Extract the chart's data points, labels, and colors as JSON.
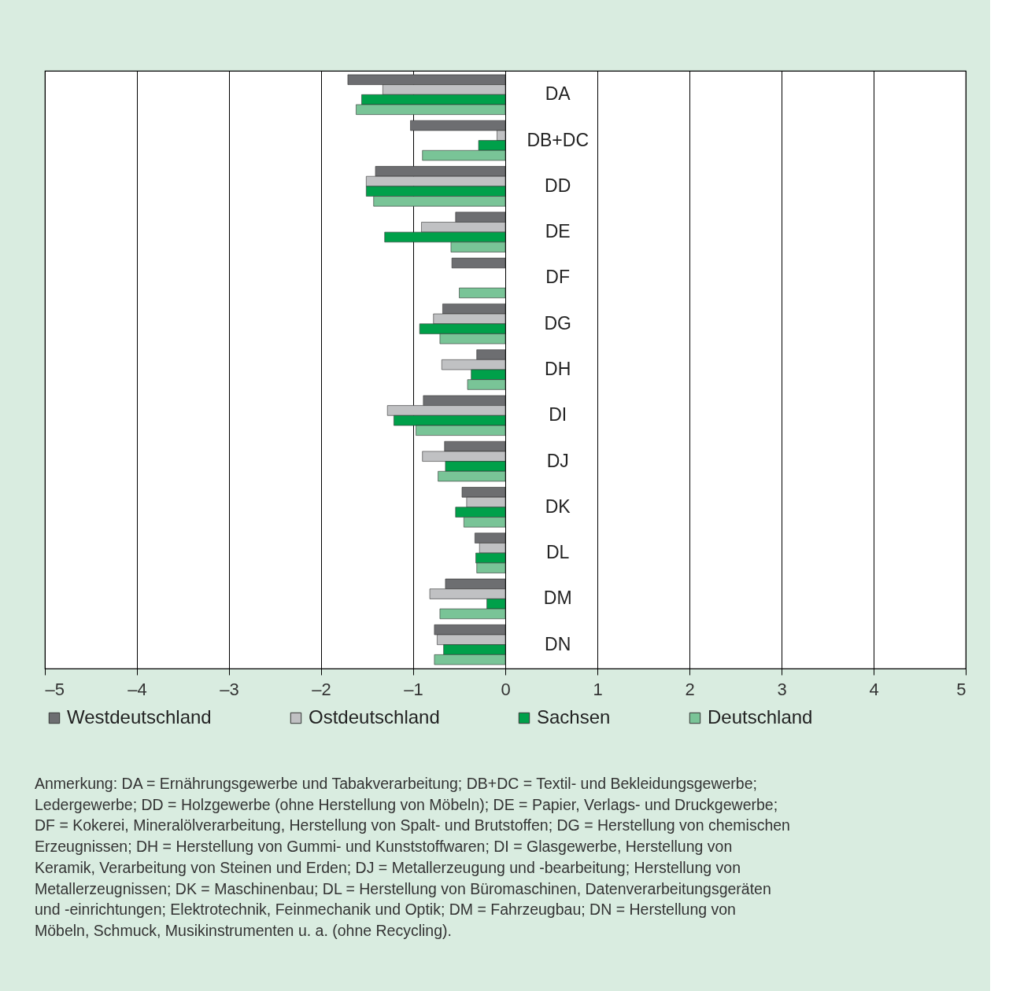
{
  "chart_data": {
    "type": "bar",
    "orientation": "horizontal",
    "categories": [
      "DA",
      "DB+DC",
      "DD",
      "DE",
      "DF",
      "DG",
      "DH",
      "DI",
      "DJ",
      "DK",
      "DL",
      "DM",
      "DN"
    ],
    "series": [
      {
        "name": "Westdeutschland",
        "color": "#6d6e71",
        "values": [
          -1.71,
          -1.03,
          -1.41,
          -0.54,
          -0.58,
          -0.68,
          -0.31,
          -0.89,
          -0.66,
          -0.47,
          -0.33,
          -0.65,
          -0.77
        ]
      },
      {
        "name": "Ostdeutschland",
        "color": "#c0c1c3",
        "values": [
          -1.33,
          -0.09,
          -1.51,
          -0.91,
          null,
          -0.78,
          -0.69,
          -1.28,
          -0.9,
          -0.42,
          -0.28,
          -0.82,
          -0.74
        ]
      },
      {
        "name": "Sachsen",
        "color": "#00a04a",
        "values": [
          -1.56,
          -0.29,
          -1.51,
          -1.31,
          null,
          -0.93,
          -0.37,
          -1.21,
          -0.65,
          -0.54,
          -0.32,
          -0.2,
          -0.67
        ]
      },
      {
        "name": "Deutschland",
        "color": "#79c497",
        "values": [
          -1.62,
          -0.9,
          -1.43,
          -0.59,
          -0.5,
          -0.71,
          -0.41,
          -0.97,
          -0.73,
          -0.45,
          -0.31,
          -0.71,
          -0.77
        ]
      }
    ],
    "xlim": [
      -5,
      5
    ],
    "xticks": [
      {
        "value": -5,
        "label": "–5"
      },
      {
        "value": -4,
        "label": "–4"
      },
      {
        "value": -3,
        "label": "–3"
      },
      {
        "value": -2,
        "label": "–2"
      },
      {
        "value": -1,
        "label": "–1"
      },
      0,
      1,
      2,
      3,
      4,
      5
    ],
    "grid": "x",
    "legend": "bottom",
    "annotations": [
      "Anmerkung: DA = Ernährungsgewerbe und Tabakverarbeitung; DB+DC = Textil- und Bekleidungsgewerbe;\nLedergewerbe; DD = Holzgewerbe (ohne Herstellung von Möbeln); DE = Papier, Verlags- und Druckgewerbe;\nDF = Kokerei, Mineralölverarbeitung, Herstellung von Spalt- und Brutstoffen; DG = Herstellung von chemischen\nErzeugnissen; DH = Herstellung von Gummi- und Kunststoffwaren; DI = Glasgewerbe, Herstellung von\nKeramik, Verarbeitung von Steinen und Erden; DJ = Metallerzeugung und -bearbeitung; Herstellung von\nMetallerzeugnissen; DK = Maschinenbau; DL = Herstellung von Büromaschinen, Datenverarbeitungsgeräten\nund -einrichtungen; Elektrotechnik, Feinmechanik und Optik; DM = Fahrzeugbau; DN = Herstellung von\nMöbeln, Schmuck, Musikinstrumenten u. a. (ohne Recycling)."
    ]
  }
}
